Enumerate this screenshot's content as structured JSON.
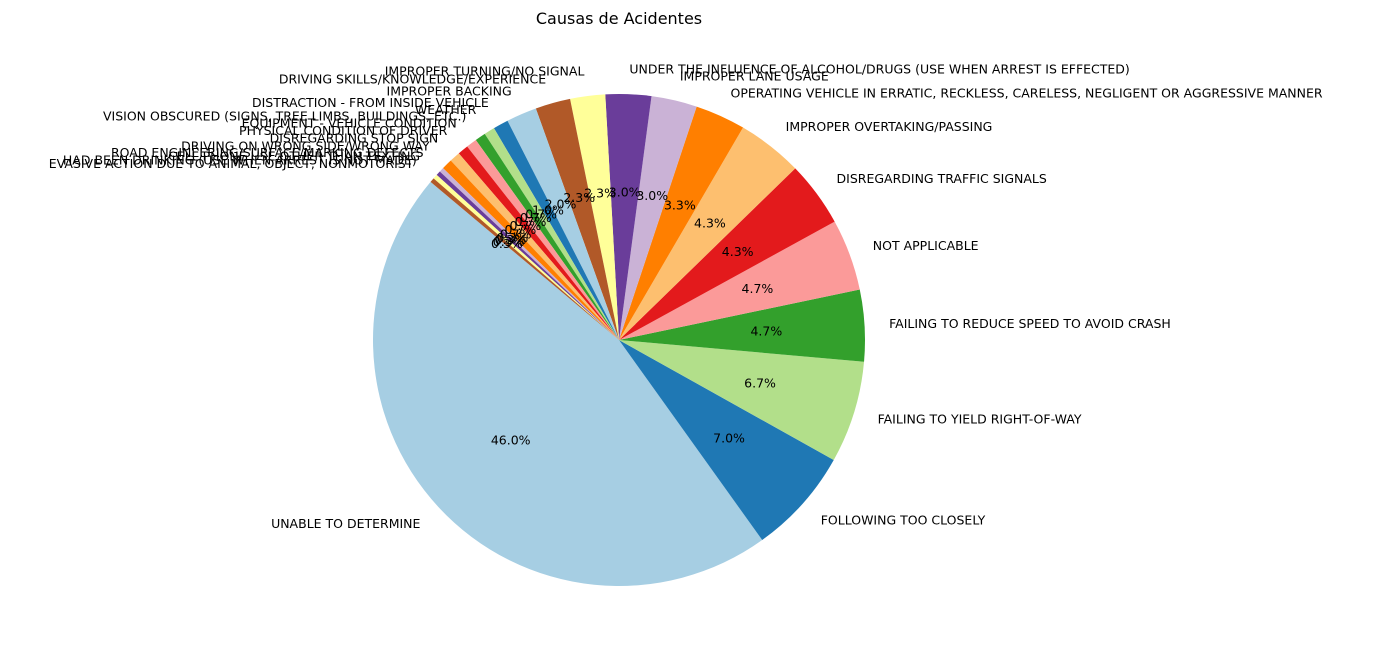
{
  "chart_data": {
    "type": "pie",
    "title": "Causas de Acidentes",
    "start_angle_deg": 140,
    "direction": "counterclockwise",
    "slices": [
      {
        "label": "UNABLE TO DETERMINE",
        "value": 46.0,
        "pct": "46.0%",
        "color": "#a6cee3"
      },
      {
        "label": "FOLLOWING TOO CLOSELY",
        "value": 7.0,
        "pct": "7.0%",
        "color": "#1f78b4"
      },
      {
        "label": "FAILING TO YIELD RIGHT-OF-WAY",
        "value": 6.7,
        "pct": "6.7%",
        "color": "#b2df8a"
      },
      {
        "label": "FAILING TO REDUCE SPEED TO AVOID CRASH",
        "value": 4.7,
        "pct": "4.7%",
        "color": "#33a02c"
      },
      {
        "label": "NOT APPLICABLE",
        "value": 4.7,
        "pct": "4.7%",
        "color": "#fb9a99"
      },
      {
        "label": "DISREGARDING TRAFFIC SIGNALS",
        "value": 4.3,
        "pct": "4.3%",
        "color": "#e31a1c"
      },
      {
        "label": "IMPROPER OVERTAKING/PASSING",
        "value": 4.3,
        "pct": "4.3%",
        "color": "#fdbf6f"
      },
      {
        "label": "OPERATING VEHICLE IN ERRATIC, RECKLESS, CARELESS, NEGLIGENT OR AGGRESSIVE MANNER",
        "value": 3.3,
        "pct": "3.3%",
        "color": "#ff7f00"
      },
      {
        "label": "IMPROPER LANE USAGE",
        "value": 3.0,
        "pct": "3.0%",
        "color": "#cab2d6"
      },
      {
        "label": "UNDER THE INFLUENCE OF ALCOHOL/DRUGS (USE WHEN ARREST IS EFFECTED)",
        "value": 3.0,
        "pct": "3.0%",
        "color": "#6a3d9a"
      },
      {
        "label": "IMPROPER TURNING/NO SIGNAL",
        "value": 2.3,
        "pct": "2.3%",
        "color": "#ffff99"
      },
      {
        "label": "DRIVING SKILLS/KNOWLEDGE/EXPERIENCE",
        "value": 2.3,
        "pct": "2.3%",
        "color": "#b15928"
      },
      {
        "label": "IMPROPER BACKING",
        "value": 2.0,
        "pct": "2.0%",
        "color": "#a6cee3"
      },
      {
        "label": "DISTRACTION - FROM INSIDE VEHICLE",
        "value": 1.0,
        "pct": "1.0%",
        "color": "#1f78b4"
      },
      {
        "label": "WEATHER",
        "value": 0.7,
        "pct": "0.7%",
        "color": "#b2df8a"
      },
      {
        "label": "VISION OBSCURED (SIGNS, TREE LIMBS, BUILDINGS, ETC.)",
        "value": 0.7,
        "pct": "0.7%",
        "color": "#33a02c"
      },
      {
        "label": "EQUIPMENT - VEHICLE CONDITION",
        "value": 0.7,
        "pct": "0.7%",
        "color": "#fb9a99"
      },
      {
        "label": "PHYSICAL CONDITION OF DRIVER",
        "value": 0.7,
        "pct": "0.7%",
        "color": "#e31a1c"
      },
      {
        "label": "DISREGARDING STOP SIGN",
        "value": 0.7,
        "pct": "0.7%",
        "color": "#fdbf6f"
      },
      {
        "label": "DRIVING ON WRONG SIDE/WRONG WAY",
        "value": 0.7,
        "pct": "0.7%",
        "color": "#ff7f00"
      },
      {
        "label": "ROAD ENGINEERING/SURFACE/MARKING DEFECTS",
        "value": 0.3,
        "pct": "0.3%",
        "color": "#cab2d6"
      },
      {
        "label": "CELL PHONE USE OTHER THAN TEXTING",
        "value": 0.3,
        "pct": "0.3%",
        "color": "#6a3d9a"
      },
      {
        "label": "HAD BEEN DRINKING (USE WHEN ARREST IS NOT MADE)",
        "value": 0.3,
        "pct": "0.3%",
        "color": "#ffff99"
      },
      {
        "label": "EVASIVE ACTION DUE TO ANIMAL, OBJECT, NONMOTORIST",
        "value": 0.3,
        "pct": "0.3%",
        "color": "#b15928"
      }
    ]
  }
}
